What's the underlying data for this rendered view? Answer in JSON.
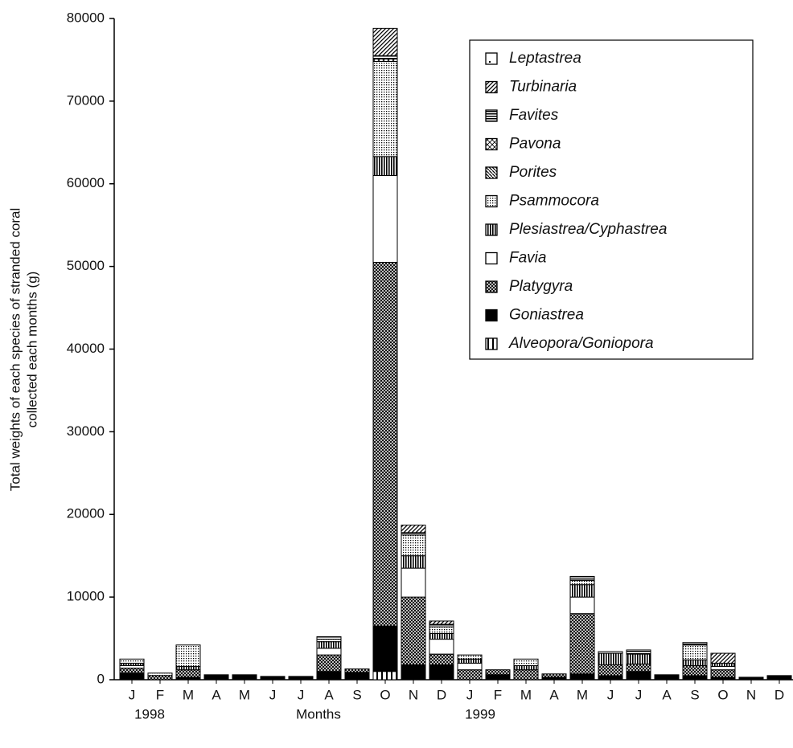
{
  "chart_data": {
    "type": "stacked-bar",
    "ylabel": [
      "Total weights of each species of stranded coral",
      "collected each months (g)"
    ],
    "xlabel": "Months",
    "year_labels": [
      "1998",
      "1999"
    ],
    "categories": [
      "J",
      "F",
      "M",
      "A",
      "M",
      "J",
      "J",
      "A",
      "S",
      "O",
      "N",
      "D",
      "J",
      "F",
      "M",
      "A",
      "M",
      "J",
      "J",
      "A",
      "S",
      "O",
      "N",
      "D"
    ],
    "ylim": [
      0,
      80000
    ],
    "yticks": [
      0,
      10000,
      20000,
      30000,
      40000,
      50000,
      60000,
      70000,
      80000
    ],
    "series": [
      {
        "name": "Alveopora/Goniopora",
        "pattern": "vlines",
        "values": [
          0,
          0,
          0,
          0,
          0,
          0,
          0,
          0,
          0,
          1000,
          0,
          0,
          0,
          0,
          0,
          0,
          0,
          0,
          0,
          0,
          0,
          0,
          0,
          0
        ]
      },
      {
        "name": "Goniastrea",
        "pattern": "solid",
        "values": [
          800,
          0,
          300,
          600,
          600,
          400,
          400,
          1000,
          900,
          5500,
          1800,
          1800,
          0,
          600,
          0,
          300,
          700,
          500,
          1000,
          600,
          500,
          300,
          300,
          500
        ]
      },
      {
        "name": "Platygyra",
        "pattern": "crosshatch",
        "values": [
          600,
          500,
          900,
          0,
          0,
          0,
          0,
          2000,
          400,
          44000,
          8200,
          1300,
          1200,
          600,
          1200,
          400,
          7300,
          1300,
          900,
          0,
          1200,
          900,
          0,
          0
        ]
      },
      {
        "name": "Favia",
        "pattern": "white",
        "values": [
          300,
          0,
          0,
          0,
          0,
          0,
          0,
          800,
          0,
          10500,
          3500,
          1800,
          800,
          0,
          0,
          0,
          2000,
          0,
          0,
          0,
          0,
          400,
          0,
          0
        ]
      },
      {
        "name": "Plesiastrea/Cyphastrea",
        "pattern": "vbars",
        "values": [
          300,
          0,
          400,
          0,
          0,
          0,
          0,
          800,
          0,
          2300,
          1500,
          700,
          500,
          0,
          500,
          0,
          1500,
          1400,
          1200,
          0,
          700,
          400,
          0,
          0
        ]
      },
      {
        "name": "Psammocora",
        "pattern": "dots",
        "values": [
          500,
          300,
          2600,
          0,
          0,
          0,
          0,
          300,
          0,
          11500,
          2500,
          800,
          500,
          0,
          800,
          0,
          500,
          0,
          0,
          0,
          1800,
          0,
          0,
          0
        ]
      },
      {
        "name": "Porites",
        "pattern": "backdiag",
        "values": [
          0,
          0,
          0,
          0,
          0,
          0,
          0,
          0,
          0,
          0,
          0,
          0,
          0,
          0,
          0,
          0,
          0,
          0,
          0,
          0,
          0,
          0,
          0,
          0
        ]
      },
      {
        "name": "Pavona",
        "pattern": "xdiag",
        "values": [
          0,
          0,
          0,
          0,
          0,
          0,
          0,
          0,
          0,
          300,
          0,
          0,
          0,
          0,
          0,
          0,
          0,
          0,
          0,
          0,
          0,
          0,
          0,
          0
        ]
      },
      {
        "name": "Favites",
        "pattern": "hlines",
        "values": [
          0,
          0,
          0,
          0,
          0,
          0,
          0,
          300,
          0,
          400,
          300,
          300,
          0,
          0,
          0,
          0,
          500,
          200,
          500,
          0,
          300,
          0,
          0,
          0
        ]
      },
      {
        "name": "Turbinaria",
        "pattern": "fwddiag",
        "values": [
          0,
          0,
          0,
          0,
          0,
          0,
          0,
          0,
          0,
          3300,
          900,
          400,
          0,
          0,
          0,
          0,
          0,
          0,
          0,
          0,
          0,
          1200,
          0,
          0
        ]
      },
      {
        "name": "Leptastrea",
        "pattern": "centerdot",
        "values": [
          0,
          0,
          0,
          0,
          0,
          0,
          0,
          0,
          0,
          0,
          0,
          0,
          0,
          0,
          0,
          0,
          0,
          0,
          0,
          0,
          0,
          0,
          0,
          0
        ]
      }
    ]
  }
}
